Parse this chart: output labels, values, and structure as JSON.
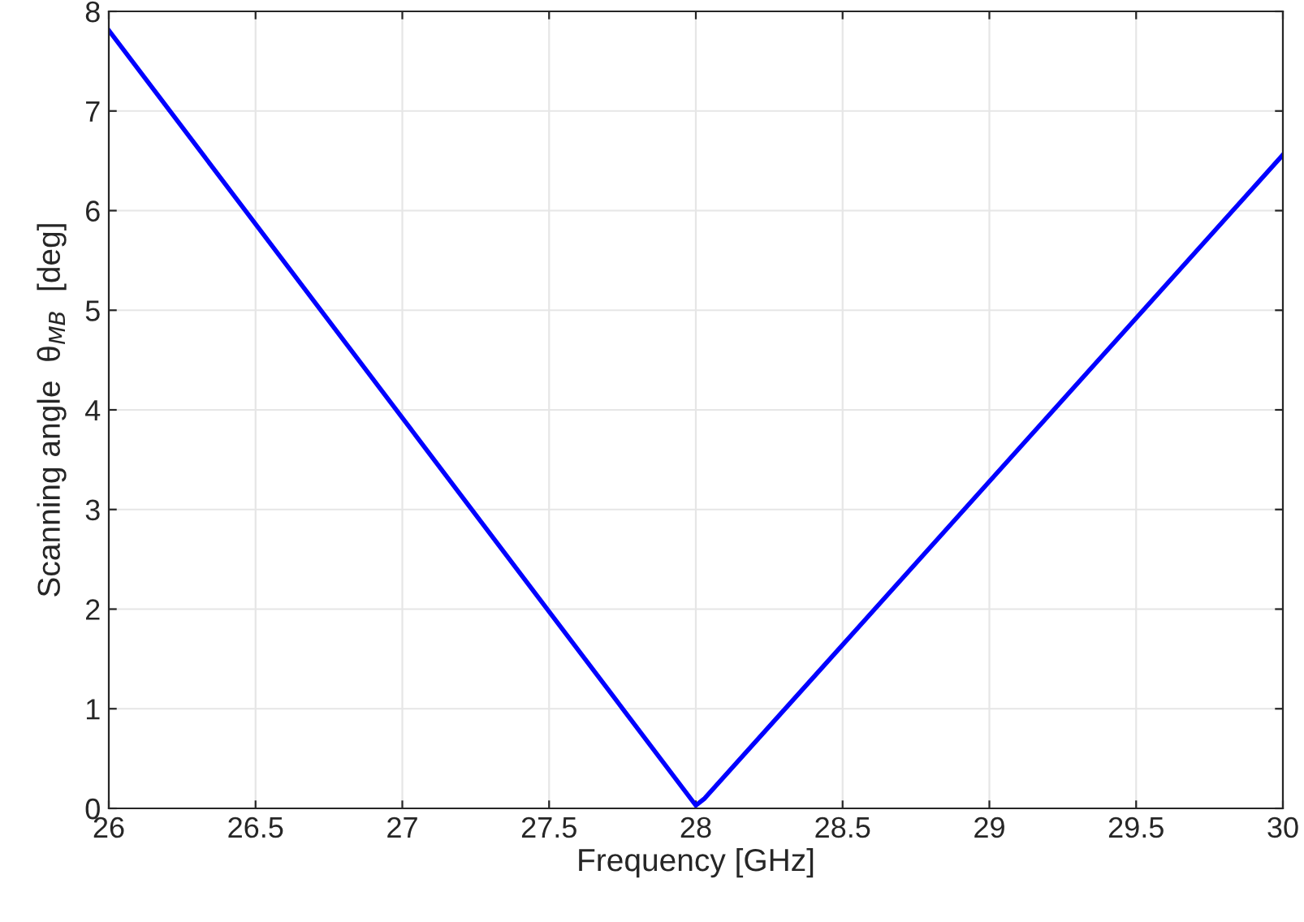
{
  "chart_data": {
    "type": "line",
    "xlabel": "Frequency [GHz]",
    "ylabel": "Scanning angle  θ$_{MB}$  [deg]",
    "series": [
      {
        "color": "#0000ff",
        "x": [
          26,
          28.0,
          28.03,
          30
        ],
        "values": [
          7.81,
          0.03,
          0.1,
          6.56
        ]
      }
    ],
    "xlim": [
      26,
      30
    ],
    "ylim": [
      0,
      8
    ],
    "xticks": [
      26,
      26.5,
      27,
      27.5,
      28,
      28.5,
      29,
      29.5,
      30
    ],
    "yticks": [
      0,
      1,
      2,
      3,
      4,
      5,
      6,
      7,
      8
    ],
    "grid": true,
    "legend": false,
    "marker": "none",
    "line_style": "solid"
  }
}
